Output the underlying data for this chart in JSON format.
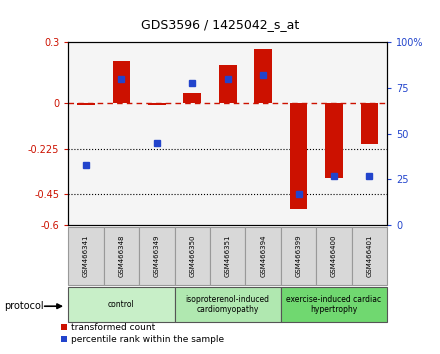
{
  "title": "GDS3596 / 1425042_s_at",
  "samples": [
    "GSM466341",
    "GSM466348",
    "GSM466349",
    "GSM466350",
    "GSM466351",
    "GSM466394",
    "GSM466399",
    "GSM466400",
    "GSM466401"
  ],
  "red_values": [
    -0.01,
    0.21,
    -0.01,
    0.05,
    0.19,
    0.27,
    -0.52,
    -0.37,
    -0.2
  ],
  "blue_values_pct": [
    33,
    80,
    45,
    78,
    80,
    82,
    17,
    27,
    27
  ],
  "groups": [
    {
      "label": "control",
      "start": 0,
      "end": 3,
      "color": "#c8efc8"
    },
    {
      "label": "isoproterenol-induced\ncardiomyopathy",
      "start": 3,
      "end": 6,
      "color": "#b0e8b0"
    },
    {
      "label": "exercise-induced cardiac\nhypertrophy",
      "start": 6,
      "end": 9,
      "color": "#70d870"
    }
  ],
  "ylim_left": [
    -0.6,
    0.3
  ],
  "ylim_right": [
    0,
    100
  ],
  "yticks_left": [
    0.3,
    0.0,
    -0.225,
    -0.45,
    -0.6
  ],
  "yticks_left_labels": [
    "0.3",
    "0",
    "-0.225",
    "-0.45",
    "-0.6"
  ],
  "yticks_right": [
    100,
    75,
    50,
    25,
    0
  ],
  "yticks_right_labels": [
    "100%",
    "75",
    "50",
    "25",
    "0"
  ],
  "hlines": [
    -0.225,
    -0.45
  ],
  "bar_color": "#cc1100",
  "dot_color": "#2244cc",
  "background_color": "#ffffff",
  "legend_items": [
    "transformed count",
    "percentile rank within the sample"
  ],
  "protocol_label": "protocol"
}
